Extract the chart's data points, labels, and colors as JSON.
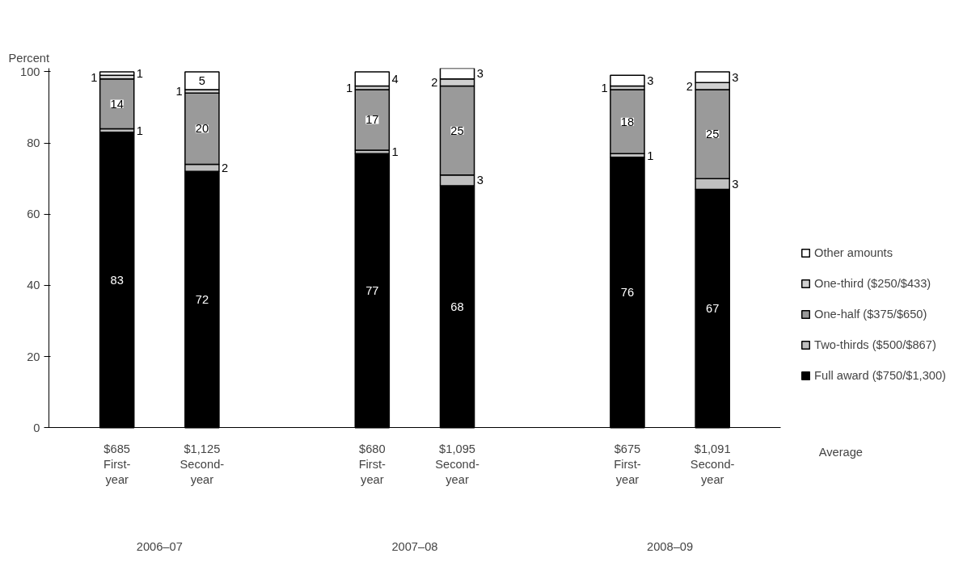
{
  "chart_data": {
    "type": "bar",
    "stacked": true,
    "ylabel": "Percent",
    "ylim": [
      0,
      101
    ],
    "yticks": [
      0,
      20,
      40,
      60,
      80,
      100
    ],
    "grid": false,
    "legend": "right",
    "data_labels": true,
    "categories": [
      "$685 First-year",
      "$1,125 Second-year",
      "$680 First-year",
      "$1,095 Second-year",
      "$675 First-year",
      "$1,091 Second-year"
    ],
    "series": [
      {
        "name": "Full award ($750/$1,300)",
        "color": "#000000",
        "values": [
          83,
          72,
          77,
          68,
          76,
          67
        ]
      },
      {
        "name": "Two-thirds ($500/$867)",
        "color": "#bfbfbf",
        "values": [
          1,
          2,
          1,
          3,
          1,
          3
        ]
      },
      {
        "name": "One-half ($375/$650)",
        "color": "#9a9a9a",
        "values": [
          14,
          20,
          17,
          25,
          18,
          25
        ]
      },
      {
        "name": "One-third ($250/$433)",
        "color": "#d0d0d0",
        "values": [
          1,
          1,
          1,
          2,
          1,
          2
        ]
      },
      {
        "name": "Other amounts",
        "color": "#ffffff",
        "values": [
          1,
          5,
          4,
          3,
          3,
          3
        ]
      }
    ],
    "annotations": [
      "Average",
      "2006–07",
      "2007–08",
      "2008–09"
    ]
  }
}
